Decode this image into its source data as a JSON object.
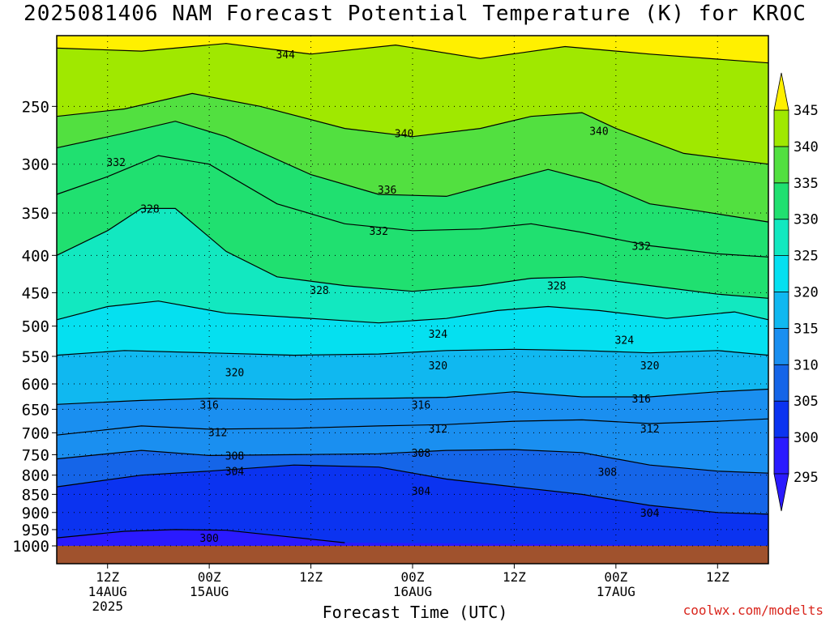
{
  "title": "2025081406 NAM Forecast Potential Temperature (K) for KROC",
  "credit": "coolwx.com/modelts",
  "colors": {
    "ground": "#a0522d",
    "levels": [
      "#2a1aff",
      "#0b33f0",
      "#1565e8",
      "#1a8ff0",
      "#10b8f0",
      "#05e0f0",
      "#12e8c0",
      "#20e070",
      "#52e040",
      "#a0e800",
      "#fff000"
    ]
  },
  "chart_data": {
    "type": "heatmap",
    "title": "2025081406 NAM Forecast Potential Temperature (K) for KROC",
    "xlabel": "Forecast Time (UTC)",
    "ylabel": "",
    "y_scale": "pressure (log-like, decreasing upward)",
    "y_ticks": [
      250,
      300,
      350,
      400,
      450,
      500,
      550,
      600,
      650,
      700,
      750,
      800,
      850,
      900,
      950,
      1000
    ],
    "x_ticks": [
      {
        "label": "12Z",
        "date": "14AUG",
        "year": "2025",
        "hour": 6
      },
      {
        "label": "00Z",
        "date": "15AUG",
        "year": "",
        "hour": 18
      },
      {
        "label": "12Z",
        "date": "",
        "year": "",
        "hour": 30
      },
      {
        "label": "00Z",
        "date": "16AUG",
        "year": "",
        "hour": 42
      },
      {
        "label": "12Z",
        "date": "",
        "year": "",
        "hour": 54
      },
      {
        "label": "00Z",
        "date": "17AUG",
        "year": "",
        "hour": 66
      },
      {
        "label": "12Z",
        "date": "",
        "year": "",
        "hour": 78
      }
    ],
    "xlim": [
      0,
      84
    ],
    "ylim": [
      1000,
      200
    ],
    "colorbar": {
      "ticks": [
        295,
        300,
        305,
        310,
        315,
        320,
        325,
        330,
        335,
        340,
        345
      ],
      "extend": "both"
    },
    "contour_interval": 4,
    "contours": [
      {
        "level": 344,
        "points": [
          [
            0,
            208
          ],
          [
            10,
            210
          ],
          [
            20,
            205
          ],
          [
            30,
            212
          ],
          [
            40,
            206
          ],
          [
            50,
            215
          ],
          [
            60,
            207
          ],
          [
            70,
            212
          ],
          [
            84,
            218
          ]
        ]
      },
      {
        "level": 340,
        "points": [
          [
            0,
            258
          ],
          [
            8,
            252
          ],
          [
            16,
            240
          ],
          [
            24,
            250
          ],
          [
            34,
            268
          ],
          [
            42,
            275
          ],
          [
            50,
            268
          ],
          [
            56,
            258
          ],
          [
            62,
            255
          ],
          [
            66,
            268
          ],
          [
            74,
            290
          ],
          [
            84,
            300
          ]
        ]
      },
      {
        "level": 336,
        "points": [
          [
            0,
            285
          ],
          [
            8,
            272
          ],
          [
            14,
            262
          ],
          [
            20,
            275
          ],
          [
            30,
            310
          ],
          [
            38,
            330
          ],
          [
            46,
            332
          ],
          [
            52,
            318
          ],
          [
            58,
            305
          ],
          [
            64,
            318
          ],
          [
            70,
            340
          ],
          [
            76,
            348
          ],
          [
            84,
            360
          ]
        ]
      },
      {
        "level": 332,
        "points": [
          [
            0,
            330
          ],
          [
            6,
            312
          ],
          [
            12,
            292
          ],
          [
            18,
            300
          ],
          [
            26,
            340
          ],
          [
            34,
            362
          ],
          [
            42,
            370
          ],
          [
            50,
            368
          ],
          [
            56,
            362
          ],
          [
            62,
            372
          ],
          [
            70,
            388
          ],
          [
            78,
            398
          ],
          [
            84,
            402
          ]
        ]
      },
      {
        "level": 328,
        "points": [
          [
            0,
            400
          ],
          [
            6,
            370
          ],
          [
            10,
            345
          ],
          [
            14,
            345
          ],
          [
            20,
            395
          ],
          [
            26,
            428
          ],
          [
            34,
            440
          ],
          [
            42,
            448
          ],
          [
            50,
            440
          ],
          [
            56,
            430
          ],
          [
            62,
            428
          ],
          [
            70,
            440
          ],
          [
            78,
            452
          ],
          [
            84,
            458
          ]
        ]
      },
      {
        "level": 324,
        "points": [
          [
            0,
            490
          ],
          [
            6,
            470
          ],
          [
            12,
            462
          ],
          [
            20,
            480
          ],
          [
            30,
            488
          ],
          [
            38,
            495
          ],
          [
            46,
            488
          ],
          [
            52,
            476
          ],
          [
            58,
            470
          ],
          [
            64,
            476
          ],
          [
            72,
            488
          ],
          [
            80,
            478
          ],
          [
            84,
            490
          ]
        ]
      },
      {
        "level": 320,
        "points": [
          [
            0,
            548
          ],
          [
            8,
            540
          ],
          [
            18,
            544
          ],
          [
            28,
            548
          ],
          [
            38,
            546
          ],
          [
            46,
            540
          ],
          [
            54,
            538
          ],
          [
            62,
            540
          ],
          [
            70,
            544
          ],
          [
            78,
            540
          ],
          [
            84,
            548
          ]
        ]
      },
      {
        "level": 316,
        "points": [
          [
            0,
            640
          ],
          [
            10,
            632
          ],
          [
            18,
            628
          ],
          [
            28,
            630
          ],
          [
            38,
            628
          ],
          [
            46,
            626
          ],
          [
            54,
            615
          ],
          [
            62,
            625
          ],
          [
            70,
            625
          ],
          [
            78,
            615
          ],
          [
            84,
            610
          ]
        ]
      },
      {
        "level": 312,
        "points": [
          [
            0,
            705
          ],
          [
            10,
            685
          ],
          [
            18,
            692
          ],
          [
            28,
            690
          ],
          [
            38,
            685
          ],
          [
            46,
            682
          ],
          [
            54,
            675
          ],
          [
            62,
            672
          ],
          [
            70,
            680
          ],
          [
            78,
            675
          ],
          [
            84,
            670
          ]
        ]
      },
      {
        "level": 308,
        "points": [
          [
            0,
            760
          ],
          [
            10,
            740
          ],
          [
            18,
            752
          ],
          [
            28,
            750
          ],
          [
            38,
            748
          ],
          [
            46,
            740
          ],
          [
            54,
            738
          ],
          [
            62,
            745
          ],
          [
            70,
            775
          ],
          [
            78,
            790
          ],
          [
            84,
            795
          ]
        ]
      },
      {
        "level": 304,
        "points": [
          [
            0,
            830
          ],
          [
            10,
            800
          ],
          [
            18,
            790
          ],
          [
            28,
            775
          ],
          [
            38,
            780
          ],
          [
            46,
            810
          ],
          [
            54,
            830
          ],
          [
            62,
            850
          ],
          [
            70,
            880
          ],
          [
            78,
            900
          ],
          [
            84,
            905
          ]
        ]
      },
      {
        "level": 300,
        "points": [
          [
            0,
            975
          ],
          [
            8,
            955
          ],
          [
            14,
            950
          ],
          [
            20,
            952
          ],
          [
            26,
            968
          ],
          [
            34,
            990
          ]
        ]
      }
    ],
    "labels": [
      {
        "text": "344",
        "x": 27,
        "p": 212
      },
      {
        "text": "340",
        "x": 41,
        "p": 272
      },
      {
        "text": "340",
        "x": 64,
        "p": 270
      },
      {
        "text": "336",
        "x": 39,
        "p": 325
      },
      {
        "text": "332",
        "x": 7,
        "p": 298
      },
      {
        "text": "332",
        "x": 38,
        "p": 370
      },
      {
        "text": "332",
        "x": 69,
        "p": 388
      },
      {
        "text": "328",
        "x": 11,
        "p": 345
      },
      {
        "text": "328",
        "x": 31,
        "p": 446
      },
      {
        "text": "328",
        "x": 59,
        "p": 440
      },
      {
        "text": "324",
        "x": 45,
        "p": 512
      },
      {
        "text": "324",
        "x": 67,
        "p": 522
      },
      {
        "text": "320",
        "x": 21,
        "p": 578
      },
      {
        "text": "320",
        "x": 45,
        "p": 566
      },
      {
        "text": "320",
        "x": 70,
        "p": 566
      },
      {
        "text": "316",
        "x": 18,
        "p": 640
      },
      {
        "text": "316",
        "x": 43,
        "p": 640
      },
      {
        "text": "316",
        "x": 69,
        "p": 628
      },
      {
        "text": "312",
        "x": 19,
        "p": 698
      },
      {
        "text": "312",
        "x": 45,
        "p": 690
      },
      {
        "text": "312",
        "x": 70,
        "p": 690
      },
      {
        "text": "308",
        "x": 21,
        "p": 752
      },
      {
        "text": "308",
        "x": 43,
        "p": 745
      },
      {
        "text": "308",
        "x": 65,
        "p": 792
      },
      {
        "text": "304",
        "x": 21,
        "p": 790
      },
      {
        "text": "304",
        "x": 43,
        "p": 840
      },
      {
        "text": "304",
        "x": 70,
        "p": 900
      },
      {
        "text": "300",
        "x": 18,
        "p": 975
      }
    ]
  }
}
